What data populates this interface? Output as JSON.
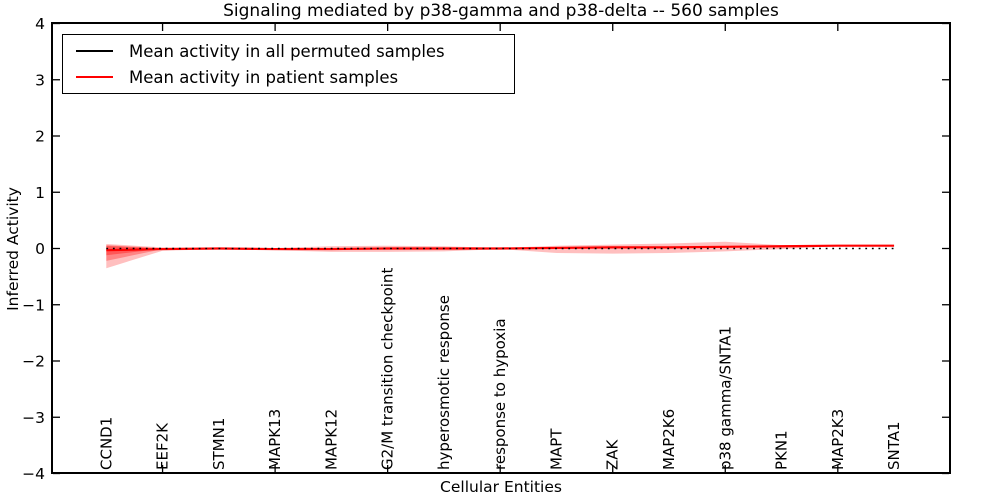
{
  "title": "Signaling mediated by p38-gamma and p38-delta -- 560 samples",
  "legend": {
    "items": [
      {
        "label": "Mean activity in all permuted samples",
        "color": "#000000"
      },
      {
        "label": "Mean activity in patient samples",
        "color": "#ff0000"
      }
    ]
  },
  "colors": {
    "patient_line": "#ff0000",
    "permuted_line": "#000000",
    "band_fill": "#ff0000",
    "axis": "#000000"
  },
  "chart_data": {
    "type": "line",
    "title": "Signaling mediated by p38-gamma and p38-delta -- 560 samples",
    "xlabel": "Cellular Entities",
    "ylabel": "Inferred Activity",
    "ylim": [
      -4,
      4
    ],
    "grid": false,
    "legend_position": "upper left",
    "yticks": [
      {
        "value": 4,
        "label": "4"
      },
      {
        "value": 3,
        "label": "3"
      },
      {
        "value": 2,
        "label": "2"
      },
      {
        "value": 1,
        "label": "1"
      },
      {
        "value": 0,
        "label": "0"
      },
      {
        "value": -1,
        "label": "−1"
      },
      {
        "value": -2,
        "label": "−2"
      },
      {
        "value": -3,
        "label": "−3"
      },
      {
        "value": -4,
        "label": "−4"
      }
    ],
    "categories": [
      "CCND1",
      "EEF2K",
      "STMN1",
      "MAPK13",
      "MAPK12",
      "G2/M transition checkpoint",
      "hyperosmotic response",
      "response to hypoxia",
      "MAPT",
      "ZAK",
      "MAP2K6",
      "p38 gamma/SNTA1",
      "PKN1",
      "MAP2K3",
      "SNTA1"
    ],
    "series": [
      {
        "name": "Mean activity in all permuted samples",
        "color": "#000000",
        "linestyle": "dotted",
        "values": [
          0,
          0,
          0,
          0,
          0,
          0,
          0,
          0,
          0,
          0,
          0,
          0,
          0,
          0,
          0
        ]
      },
      {
        "name": "Mean activity in patient samples",
        "color": "#ff0000",
        "linestyle": "solid",
        "values": [
          -0.03,
          -0.01,
          0.0,
          -0.01,
          -0.01,
          0.0,
          0.0,
          0.0,
          0.01,
          0.02,
          0.02,
          0.03,
          0.04,
          0.05,
          0.05
        ]
      }
    ],
    "bands": [
      {
        "name": "confidence-band-outer",
        "opacity": 0.25,
        "upper": [
          0.08,
          0.02,
          0.01,
          0.01,
          0.04,
          0.05,
          0.04,
          0.01,
          0.05,
          0.07,
          0.09,
          0.12,
          0.06,
          0.055,
          0.055
        ],
        "lower": [
          -0.35,
          -0.04,
          -0.01,
          -0.03,
          -0.06,
          -0.06,
          -0.05,
          -0.01,
          -0.08,
          -0.09,
          -0.08,
          -0.05,
          -0.01,
          0.045,
          0.045
        ]
      },
      {
        "name": "confidence-band-mid",
        "opacity": 0.3,
        "indices": [
          0,
          1,
          2
        ],
        "upper": [
          0.06,
          0.005,
          0.0
        ],
        "lower": [
          -0.22,
          -0.01,
          0.0
        ]
      },
      {
        "name": "confidence-band-inner",
        "opacity": 0.35,
        "indices": [
          0,
          1,
          2
        ],
        "upper": [
          0.045,
          0.002,
          0.0
        ],
        "lower": [
          -0.12,
          -0.005,
          0.0
        ]
      }
    ]
  }
}
